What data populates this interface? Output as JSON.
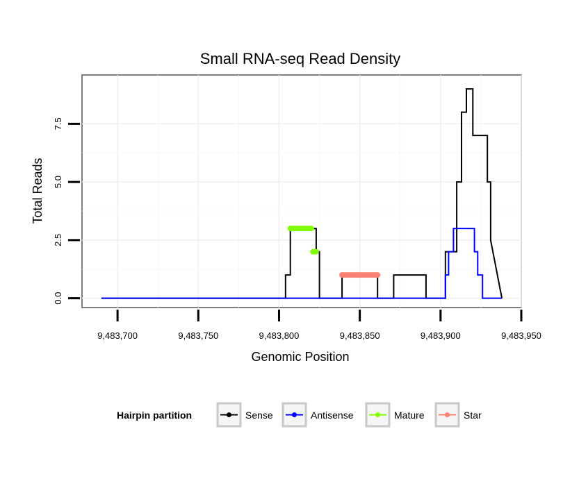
{
  "chart_data": {
    "type": "line",
    "title": "Small RNA-seq Read Density",
    "xlabel": "Genomic Position",
    "ylabel": "Total Reads",
    "xlim": [
      9483678,
      9483950
    ],
    "ylim": [
      -0.4,
      9.6
    ],
    "xticks": [
      9483700,
      9483750,
      9483800,
      9483850,
      9483900,
      9483950
    ],
    "xtick_labels": [
      "9,483,700",
      "9,483,750",
      "9,483,800",
      "9,483,850",
      "9,483,900",
      "9,483,950"
    ],
    "yticks": [
      0,
      2.5,
      5,
      7.5
    ],
    "ytick_labels": [
      "0.0",
      "2.5",
      "5.0",
      "7.5"
    ],
    "grid": true,
    "legend": {
      "title": "Hairpin partition",
      "position": "bottom",
      "entries": [
        {
          "name": "Sense",
          "color": "#000000"
        },
        {
          "name": "Antisense",
          "color": "#0000ff"
        },
        {
          "name": "Mature",
          "color": "#7fff00"
        },
        {
          "name": "Star",
          "color": "#fa8072"
        }
      ]
    },
    "series": [
      {
        "name": "Sense",
        "color": "#000000",
        "x": [
          9483690,
          9483804,
          9483804,
          9483807,
          9483807,
          9483823,
          9483823,
          9483825,
          9483825,
          9483839,
          9483839,
          9483861,
          9483861,
          9483871,
          9483871,
          9483891,
          9483891,
          9483903,
          9483903,
          9483910,
          9483910,
          9483913,
          9483913,
          9483916,
          9483916,
          9483920,
          9483920,
          9483921,
          9483921,
          9483929,
          9483929,
          9483931,
          9483931,
          9483938
        ],
        "y": [
          0,
          0,
          1,
          1,
          3,
          3,
          2,
          2,
          0,
          0,
          1,
          1,
          0,
          0,
          1,
          1,
          0,
          0,
          2,
          2,
          5,
          5,
          8,
          8,
          9,
          9,
          7,
          7,
          7,
          7,
          5,
          5,
          2.5,
          0
        ]
      },
      {
        "name": "Antisense",
        "color": "#0000ff",
        "x": [
          9483690,
          9483903,
          9483903,
          9483905,
          9483905,
          9483908,
          9483908,
          9483921,
          9483921,
          9483923,
          9483923,
          9483926,
          9483926,
          9483929,
          9483929,
          9483938
        ],
        "y": [
          0,
          0,
          1,
          1,
          2,
          2,
          3,
          3,
          2,
          2,
          1,
          1,
          0,
          0,
          0,
          0
        ]
      },
      {
        "name": "Mature",
        "color": "#7fff00",
        "x": [
          9483807,
          9483808,
          9483809,
          9483810,
          9483811,
          9483812,
          9483813,
          9483814,
          9483815,
          9483816,
          9483817,
          9483818,
          9483819,
          9483820,
          9483821,
          9483822,
          9483823
        ],
        "y": [
          3,
          3,
          3,
          3,
          3,
          3,
          3,
          3,
          3,
          3,
          3,
          3,
          3,
          3,
          2,
          2,
          2
        ]
      },
      {
        "name": "Star",
        "color": "#fa8072",
        "x": [
          9483839,
          9483840,
          9483841,
          9483842,
          9483843,
          9483844,
          9483845,
          9483846,
          9483847,
          9483848,
          9483849,
          9483850,
          9483851,
          9483852,
          9483853,
          9483854,
          9483855,
          9483856,
          9483857,
          9483858,
          9483859,
          9483860,
          9483861
        ],
        "y": [
          1,
          1,
          1,
          1,
          1,
          1,
          1,
          1,
          1,
          1,
          1,
          1,
          1,
          1,
          1,
          1,
          1,
          1,
          1,
          1,
          1,
          1,
          1
        ]
      }
    ]
  }
}
